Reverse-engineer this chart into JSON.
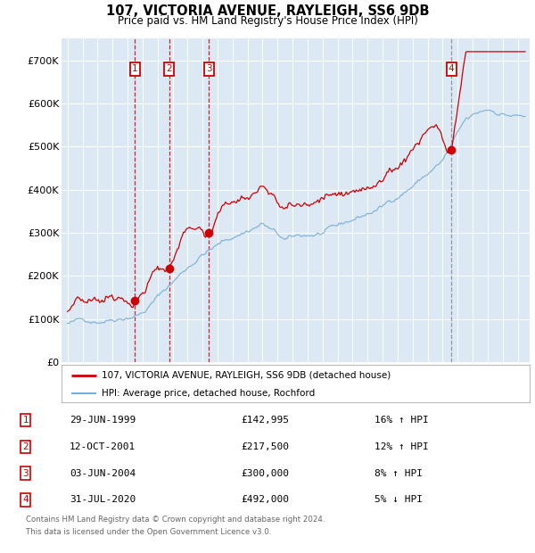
{
  "title1": "107, VICTORIA AVENUE, RAYLEIGH, SS6 9DB",
  "title2": "Price paid vs. HM Land Registry's House Price Index (HPI)",
  "legend1": "107, VICTORIA AVENUE, RAYLEIGH, SS6 9DB (detached house)",
  "legend2": "HPI: Average price, detached house, Rochford",
  "transactions": [
    {
      "num": 1,
      "date": "29-JUN-1999",
      "price": 142995,
      "pct": "16%",
      "dir": "↑",
      "year": 1999.49
    },
    {
      "num": 2,
      "date": "12-OCT-2001",
      "price": 217500,
      "pct": "12%",
      "dir": "↑",
      "year": 2001.78
    },
    {
      "num": 3,
      "date": "03-JUN-2004",
      "price": 300000,
      "pct": "8%",
      "dir": "↑",
      "year": 2004.42
    },
    {
      "num": 4,
      "date": "31-JUL-2020",
      "price": 492000,
      "pct": "5%",
      "dir": "↓",
      "year": 2020.58
    }
  ],
  "footer1": "Contains HM Land Registry data © Crown copyright and database right 2024.",
  "footer2": "This data is licensed under the Open Government Licence v3.0.",
  "hpi_color": "#7bafd4",
  "price_color": "#cc0000",
  "vline_color_red": "#cc0000",
  "vline_color_grey": "#888888",
  "box_color": "#cc0000",
  "plot_bg_color": "#dce9f5",
  "ylim": [
    0,
    750000
  ],
  "yticks": [
    0,
    100000,
    200000,
    300000,
    400000,
    500000,
    600000,
    700000
  ],
  "ylabels": [
    "£0",
    "£100K",
    "£200K",
    "£300K",
    "£400K",
    "£500K",
    "£600K",
    "£700K"
  ],
  "xstart": 1995,
  "xend": 2025
}
